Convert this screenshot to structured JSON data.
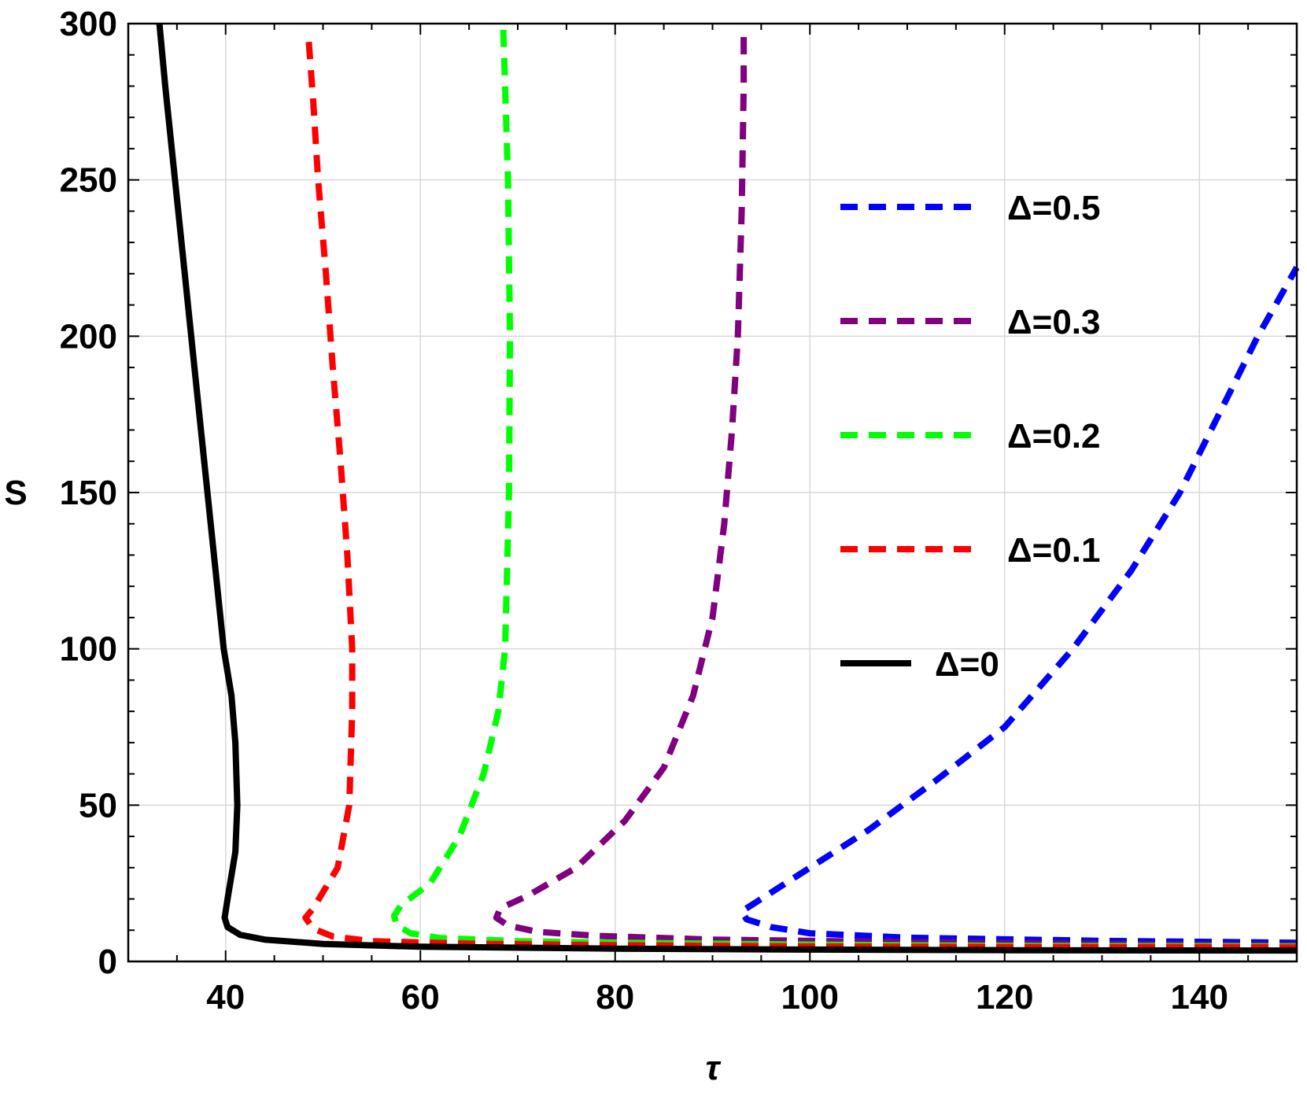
{
  "chart_data": {
    "type": "line",
    "xlabel": "τ",
    "ylabel": "S",
    "xlim": [
      30,
      150
    ],
    "ylim": [
      0,
      300
    ],
    "x_ticks": [
      40,
      60,
      80,
      100,
      120,
      140
    ],
    "y_ticks": [
      0,
      50,
      100,
      150,
      200,
      250,
      300
    ],
    "grid": true,
    "legend_position": "right",
    "series": [
      {
        "name": "Δ=0.5",
        "color": "#0000ff",
        "dashed": true,
        "points": [
          [
            150,
            6
          ],
          [
            130,
            6.6
          ],
          [
            110,
            7.6
          ],
          [
            100,
            9
          ],
          [
            96,
            11
          ],
          [
            93.5,
            13.5
          ],
          [
            93,
            16
          ],
          [
            95,
            20
          ],
          [
            100,
            30
          ],
          [
            106,
            42
          ],
          [
            113,
            58
          ],
          [
            120,
            75
          ],
          [
            127,
            100
          ],
          [
            133,
            125
          ],
          [
            138,
            150
          ],
          [
            142,
            175
          ],
          [
            146,
            200
          ],
          [
            150,
            222
          ]
        ]
      },
      {
        "name": "Δ=0.3",
        "color": "#800080",
        "dashed": true,
        "points": [
          [
            150,
            5.2
          ],
          [
            130,
            5.6
          ],
          [
            110,
            6.2
          ],
          [
            90,
            7
          ],
          [
            78,
            8.2
          ],
          [
            72,
            9.5
          ],
          [
            69,
            11.5
          ],
          [
            67.8,
            14
          ],
          [
            68.2,
            17
          ],
          [
            71,
            21
          ],
          [
            76,
            30
          ],
          [
            81,
            45
          ],
          [
            85,
            62
          ],
          [
            88,
            85
          ],
          [
            90,
            110
          ],
          [
            91.2,
            140
          ],
          [
            92,
            170
          ],
          [
            92.6,
            200
          ],
          [
            93,
            240
          ],
          [
            93.2,
            280
          ],
          [
            93.2,
            296
          ]
        ]
      },
      {
        "name": "Δ=0.2",
        "color": "#00ff00",
        "dashed": true,
        "points": [
          [
            150,
            4.8
          ],
          [
            120,
            5
          ],
          [
            100,
            5.4
          ],
          [
            80,
            6
          ],
          [
            70,
            6.5
          ],
          [
            62,
            7.5
          ],
          [
            59,
            9
          ],
          [
            57.6,
            11.5
          ],
          [
            57.3,
            14.5
          ],
          [
            58,
            18
          ],
          [
            61,
            25
          ],
          [
            64,
            40
          ],
          [
            66.5,
            60
          ],
          [
            68,
            80
          ],
          [
            68.7,
            100
          ],
          [
            69.1,
            150
          ],
          [
            69.2,
            200
          ],
          [
            69,
            250
          ],
          [
            68.5,
            300
          ]
        ]
      },
      {
        "name": "Δ=0.1",
        "color": "#ff0000",
        "dashed": true,
        "points": [
          [
            150,
            4.5
          ],
          [
            120,
            4.6
          ],
          [
            100,
            4.8
          ],
          [
            80,
            5.2
          ],
          [
            65,
            5.7
          ],
          [
            55,
            6.5
          ],
          [
            51,
            8
          ],
          [
            49,
            10.5
          ],
          [
            48.2,
            14
          ],
          [
            49,
            17
          ],
          [
            51.5,
            30
          ],
          [
            52.7,
            50
          ],
          [
            53,
            80
          ],
          [
            53,
            100
          ],
          [
            52.5,
            130
          ],
          [
            51.8,
            160
          ],
          [
            51,
            190
          ],
          [
            50.3,
            220
          ],
          [
            49.5,
            250
          ],
          [
            49,
            275
          ],
          [
            48.5,
            296
          ]
        ]
      },
      {
        "name": "Δ=0",
        "color": "#000000",
        "dashed": false,
        "points": [
          [
            150,
            3.5
          ],
          [
            120,
            3.6
          ],
          [
            100,
            3.8
          ],
          [
            80,
            4.1
          ],
          [
            60,
            4.7
          ],
          [
            50,
            5.6
          ],
          [
            44,
            7
          ],
          [
            41.5,
            8.5
          ],
          [
            40.2,
            11
          ],
          [
            39.9,
            14
          ],
          [
            40.2,
            20
          ],
          [
            41,
            35
          ],
          [
            41.2,
            50
          ],
          [
            41,
            70
          ],
          [
            40.6,
            85
          ],
          [
            39.8,
            100
          ],
          [
            38.8,
            130
          ],
          [
            37.8,
            160
          ],
          [
            36.8,
            190
          ],
          [
            35.8,
            220
          ],
          [
            34.8,
            250
          ],
          [
            33.8,
            280
          ],
          [
            33.2,
            300
          ]
        ]
      }
    ]
  }
}
